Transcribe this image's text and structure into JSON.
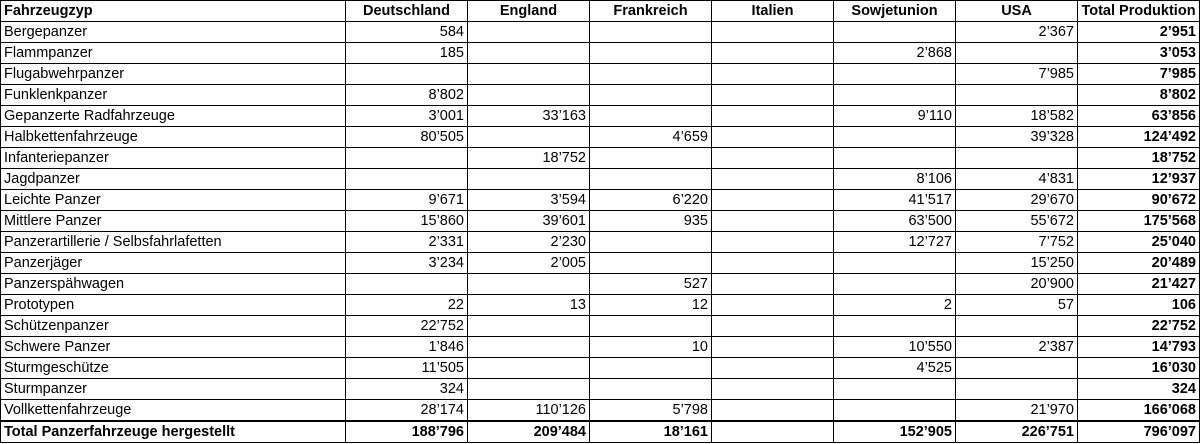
{
  "table": {
    "headers": [
      "Fahrzeugzyp",
      "Deutschland",
      "England",
      "Frankreich",
      "Italien",
      "Sowjetunion",
      "USA",
      "Total Produktion"
    ],
    "rows": [
      [
        "Bergepanzer",
        "584",
        "",
        "",
        "",
        "",
        "2’367",
        "2’951"
      ],
      [
        "Flammpanzer",
        "185",
        "",
        "",
        "",
        "2’868",
        "",
        "3’053"
      ],
      [
        "Flugabwehrpanzer",
        "",
        "",
        "",
        "",
        "",
        "7’985",
        "7’985"
      ],
      [
        "Funklenkpanzer",
        "8’802",
        "",
        "",
        "",
        "",
        "",
        "8’802"
      ],
      [
        "Gepanzerte Radfahrzeuge",
        "3’001",
        "33’163",
        "",
        "",
        "9’110",
        "18’582",
        "63’856"
      ],
      [
        "Halbkettenfahrzeuge",
        "80’505",
        "",
        "4’659",
        "",
        "",
        "39’328",
        "124’492"
      ],
      [
        "Infanteriepanzer",
        "",
        "18’752",
        "",
        "",
        "",
        "",
        "18’752"
      ],
      [
        "Jagdpanzer",
        "",
        "",
        "",
        "",
        "8’106",
        "4’831",
        "12’937"
      ],
      [
        "Leichte Panzer",
        "9’671",
        "3’594",
        "6’220",
        "",
        "41’517",
        "29’670",
        "90’672"
      ],
      [
        "Mittlere Panzer",
        "15’860",
        "39’601",
        "935",
        "",
        "63’500",
        "55’672",
        "175’568"
      ],
      [
        "Panzerartillerie / Selbsfahrlafetten",
        "2’331",
        "2’230",
        "",
        "",
        "12’727",
        "7’752",
        "25’040"
      ],
      [
        "Panzerjäger",
        "3’234",
        "2’005",
        "",
        "",
        "",
        "15’250",
        "20’489"
      ],
      [
        "Panzerspähwagen",
        "",
        "",
        "527",
        "",
        "",
        "20’900",
        "21’427"
      ],
      [
        "Prototypen",
        "22",
        "13",
        "12",
        "",
        "2",
        "57",
        "106"
      ],
      [
        "Schützenpanzer",
        "22’752",
        "",
        "",
        "",
        "",
        "",
        "22’752"
      ],
      [
        "Schwere Panzer",
        "1’846",
        "",
        "10",
        "",
        "10’550",
        "2’387",
        "14’793"
      ],
      [
        "Sturmgeschütze",
        "11’505",
        "",
        "",
        "",
        "4’525",
        "",
        "16’030"
      ],
      [
        "Sturmpanzer",
        "324",
        "",
        "",
        "",
        "",
        "",
        "324"
      ],
      [
        "Vollkettenfahrzeuge",
        "28’174",
        "110’126",
        "5’798",
        "",
        "",
        "21’970",
        "166’068"
      ]
    ],
    "footer": [
      "Total Panzerfahrzeuge hergestellt",
      "188’796",
      "209’484",
      "18’161",
      "",
      "152’905",
      "226’751",
      "796’097"
    ]
  }
}
